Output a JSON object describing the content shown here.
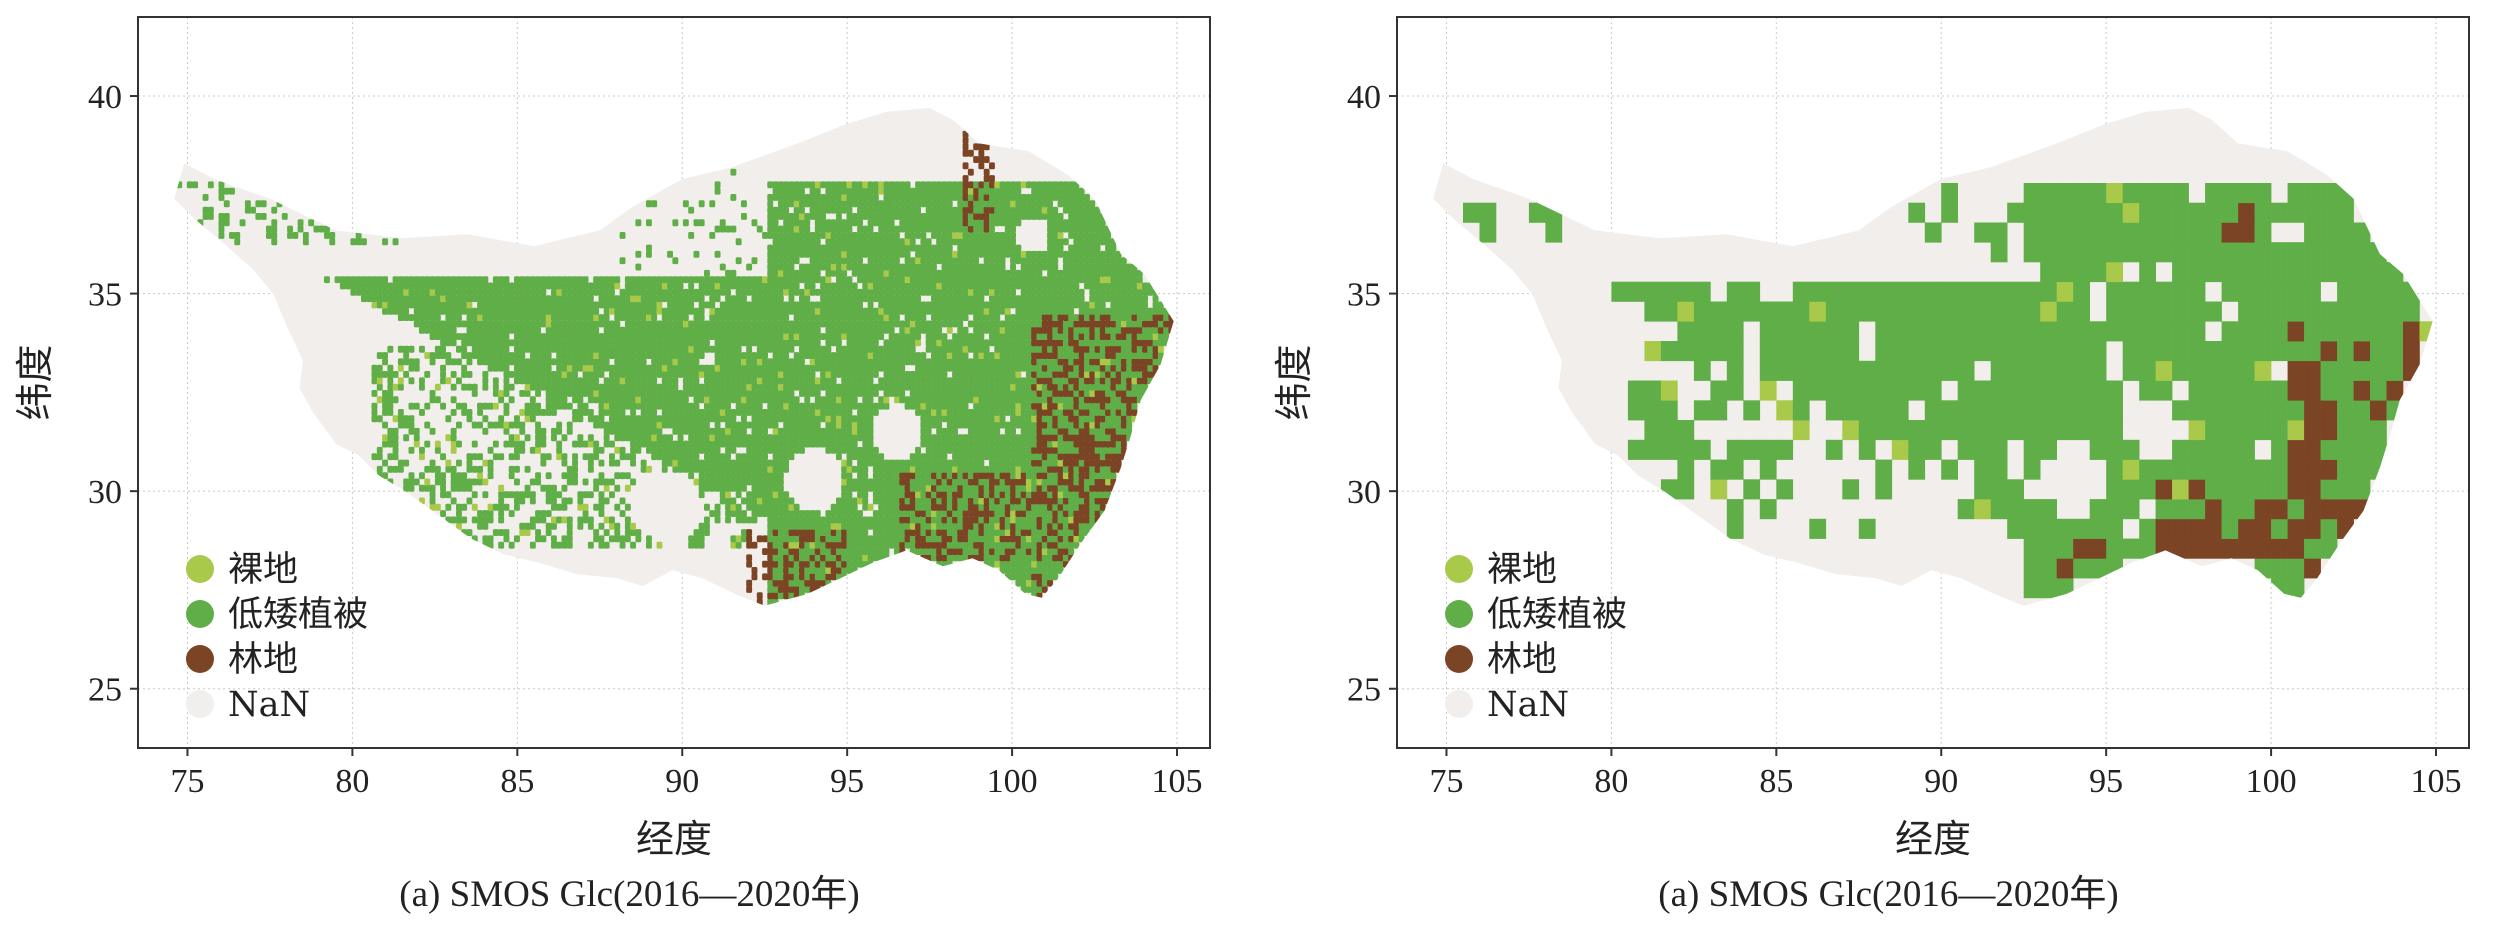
{
  "panels": [
    {
      "caption": "(a) SMOS Glc(2016—2020年)",
      "xlabel": "经度",
      "ylabel": "纬度",
      "xticks": [
        "75",
        "80",
        "85",
        "90",
        "95",
        "100",
        "105"
      ],
      "yticks": [
        "40",
        "35",
        "30",
        "25"
      ],
      "legend": [
        "裸地",
        "低矮植被",
        "林地",
        "NaN"
      ],
      "resolution": "fine"
    },
    {
      "caption": "(a) SMOS Glc(2016—2020年)",
      "xlabel": "经度",
      "ylabel": "纬度",
      "xticks": [
        "75",
        "80",
        "85",
        "90",
        "95",
        "100",
        "105"
      ],
      "yticks": [
        "40",
        "35",
        "30",
        "25"
      ],
      "legend": [
        "裸地",
        "低矮植被",
        "林地",
        "NaN"
      ],
      "resolution": "coarse"
    }
  ],
  "map_extent": {
    "lon": [
      73.5,
      106
    ],
    "lat": [
      23.5,
      42
    ]
  },
  "colors": {
    "bare": "#a9c94a",
    "low_vegetation": "#5fae47",
    "forest": "#7b4424",
    "nan": "#f2eeeb",
    "grid": "#c8c8c8",
    "frame": "#333333"
  }
}
